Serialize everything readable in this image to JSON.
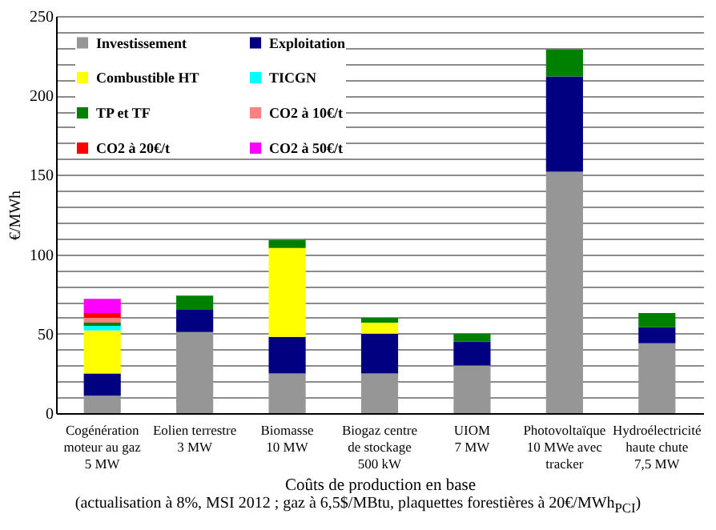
{
  "chart_data": {
    "type": "bar",
    "stacked": true,
    "xlabel": "Coûts de production en base",
    "ylabel": "€/MWh",
    "annotations": [
      "(actualisation à 8%, MSI 2012 ; gaz à 6,5$/MBtu, plaquettes forestières à 20€/MWh$_{PCI}$)"
    ],
    "categories": [
      "Cogénération\nmoteur au gaz\n5 MW",
      "Eolien terrestre\n3 MW",
      "Biomasse\n10 MW",
      "Biogaz centre\nde stockage\n500 kW",
      "UIOM\n7 MW",
      "Photovoltaïque\n10 MWe avec\ntracker",
      "Hydroélectricité\nhaute chute\n7,5 MW"
    ],
    "series": [
      {
        "name": "Investissement",
        "color": "#969696",
        "values": [
          11,
          51,
          25,
          25,
          30,
          152,
          44
        ]
      },
      {
        "name": "Exploitation",
        "color": "#000080",
        "values": [
          14,
          14,
          23,
          25,
          15,
          60,
          10
        ]
      },
      {
        "name": "Combustible HT",
        "color": "#ffff00",
        "values": [
          27,
          null,
          56,
          7,
          null,
          null,
          null
        ]
      },
      {
        "name": "TICGN",
        "color": "#00ffff",
        "values": [
          3,
          null,
          null,
          null,
          null,
          null,
          null
        ]
      },
      {
        "name": "TP et TF",
        "color": "#008000",
        "values": [
          2,
          9,
          5,
          3,
          5,
          17,
          9
        ]
      },
      {
        "name": "CO2 à 10€/t",
        "color": "#ff8080",
        "values": [
          3,
          null,
          null,
          null,
          null,
          null,
          null
        ]
      },
      {
        "name": "CO2 à 20€/t",
        "color": "#ff0000",
        "values": [
          3,
          null,
          null,
          null,
          null,
          null,
          null
        ]
      },
      {
        "name": "CO2 à 50€/t",
        "color": "#ff00ff",
        "values": [
          9,
          null,
          null,
          null,
          null,
          null,
          null
        ]
      }
    ],
    "ylim": [
      0,
      250
    ],
    "yticks": [
      0,
      {
        "value": 10,
        "label": null
      },
      {
        "value": 20,
        "label": null
      },
      {
        "value": 30,
        "label": null
      },
      {
        "value": 40,
        "label": null
      },
      50,
      {
        "value": 60,
        "label": null
      },
      {
        "value": 70,
        "label": null
      },
      {
        "value": 80,
        "label": null
      },
      {
        "value": 90,
        "label": null
      },
      100,
      {
        "value": 110,
        "label": null
      },
      {
        "value": 120,
        "label": null
      },
      {
        "value": 130,
        "label": null
      },
      {
        "value": 140,
        "label": null
      },
      150,
      {
        "value": 160,
        "label": null
      },
      {
        "value": 170,
        "label": null
      },
      {
        "value": 180,
        "label": null
      },
      {
        "value": 190,
        "label": null
      },
      200,
      {
        "value": 210,
        "label": null
      },
      {
        "value": 220,
        "label": null
      },
      {
        "value": 230,
        "label": null
      },
      {
        "value": 240,
        "label": null
      },
      250
    ],
    "grid": "y",
    "legend": "top left"
  }
}
